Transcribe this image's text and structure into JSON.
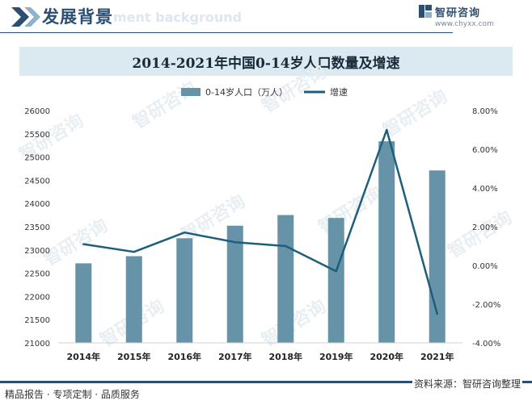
{
  "header": {
    "title": "发展背景",
    "subtitle_watermark": "ment background"
  },
  "brand": {
    "name": "智研咨询",
    "url": "www.chyxx.com",
    "watermark": "智研咨询"
  },
  "footer": {
    "left": "精品报告 · 专项定制 · 品质服务",
    "right": "资料来源：智研咨询整理"
  },
  "colors": {
    "bar": "#6793a8",
    "line": "#1d5f7a",
    "title_band": "#dbe9f1",
    "brand": "#2b4e72"
  },
  "chart_data": {
    "type": "bar",
    "title": "2014-2021年中国0-14岁人口数量及增速",
    "categories": [
      "2014年",
      "2015年",
      "2016年",
      "2017年",
      "2018年",
      "2019年",
      "2020年",
      "2021年"
    ],
    "series": [
      {
        "name": "0-14岁人口（万人）",
        "type": "bar",
        "axis": "left",
        "values": [
          22712,
          22866,
          23252,
          23522,
          23751,
          23689,
          25338,
          24711
        ]
      },
      {
        "name": "增速",
        "type": "line",
        "axis": "right",
        "values": [
          1.1,
          0.7,
          1.7,
          1.2,
          1.0,
          -0.3,
          7.0,
          -2.5
        ]
      }
    ],
    "y_left": {
      "range": [
        21000,
        26000
      ],
      "ticks": [
        "21000",
        "21500",
        "22000",
        "22500",
        "23000",
        "23500",
        "24000",
        "24500",
        "25000",
        "25500",
        "26000"
      ]
    },
    "y_right": {
      "range": [
        -4,
        8
      ],
      "ticks": [
        "-4.00%",
        "-2.00%",
        "0.00%",
        "2.00%",
        "4.00%",
        "6.00%",
        "8.00%"
      ]
    },
    "legend_position": "top-center",
    "grid": false
  }
}
